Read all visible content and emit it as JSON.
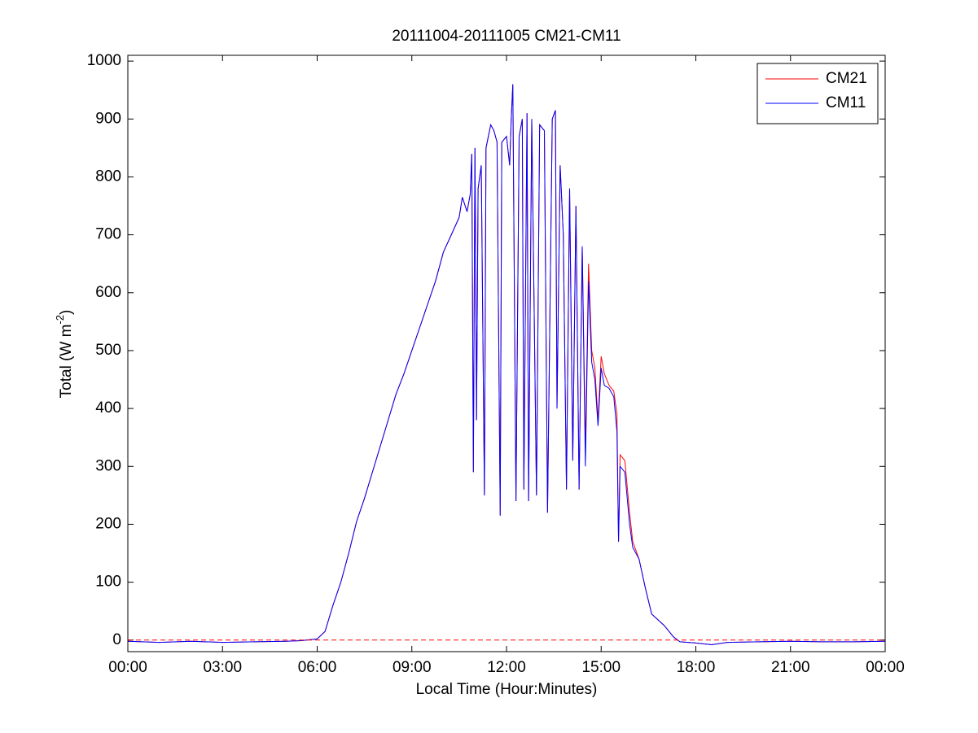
{
  "chart_data": {
    "type": "line",
    "title": "20111004-20111005 CM21-CM11",
    "x_label": "Local Time (Hour:Minutes)",
    "y_label": "Total (W m",
    "y_label_sup": "-2",
    "y_label_end": ")",
    "xlim": [
      0,
      24
    ],
    "xticks": [
      {
        "value": 0,
        "label": "00:00"
      },
      {
        "value": 3,
        "label": "03:00"
      },
      {
        "value": 6,
        "label": "06:00"
      },
      {
        "value": 9,
        "label": "09:00"
      },
      {
        "value": 12,
        "label": "12:00"
      },
      {
        "value": 15,
        "label": "15:00"
      },
      {
        "value": 18,
        "label": "18:00"
      },
      {
        "value": 21,
        "label": "21:00"
      },
      {
        "value": 24,
        "label": "00:00"
      }
    ],
    "ylim": [
      -20,
      1010
    ],
    "yticks": [
      0,
      100,
      200,
      300,
      400,
      500,
      600,
      700,
      800,
      900,
      1000
    ],
    "hline": {
      "value": 0,
      "color": "#ff0000"
    },
    "legend": "upper right",
    "x": [
      0,
      1,
      2,
      3,
      4,
      5,
      5.5,
      6,
      6.25,
      6.5,
      6.75,
      7,
      7.25,
      7.5,
      7.75,
      8,
      8.25,
      8.5,
      8.75,
      9,
      9.25,
      9.5,
      9.75,
      10,
      10.25,
      10.5,
      10.6,
      10.75,
      10.85,
      10.9,
      10.95,
      11,
      11.05,
      11.1,
      11.2,
      11.3,
      11.35,
      11.5,
      11.6,
      11.7,
      11.8,
      11.85,
      12,
      12.1,
      12.15,
      12.2,
      12.3,
      12.4,
      12.5,
      12.55,
      12.65,
      12.7,
      12.8,
      12.95,
      13.05,
      13.2,
      13.3,
      13.45,
      13.55,
      13.6,
      13.7,
      13.8,
      13.9,
      14,
      14.1,
      14.2,
      14.3,
      14.4,
      14.5,
      14.6,
      14.7,
      14.8,
      14.9,
      15,
      15.1,
      15.25,
      15.4,
      15.5,
      15.55,
      15.6,
      15.75,
      15.9,
      16,
      16.2,
      16.4,
      16.6,
      16.8,
      17,
      17.3,
      17.5,
      18,
      18.5,
      19,
      20,
      21,
      22,
      23,
      24
    ],
    "series": [
      {
        "name": "CM21",
        "color": "#ff0000",
        "values": [
          -2,
          -4,
          -2,
          -4,
          -3,
          -2,
          -1,
          2,
          15,
          60,
          100,
          150,
          205,
          245,
          290,
          335,
          380,
          425,
          460,
          500,
          540,
          580,
          620,
          670,
          700,
          730,
          765,
          740,
          770,
          840,
          290,
          850,
          380,
          780,
          820,
          250,
          850,
          890,
          880,
          860,
          215,
          860,
          870,
          820,
          900,
          960,
          240,
          870,
          900,
          260,
          910,
          240,
          900,
          250,
          890,
          880,
          220,
          900,
          915,
          400,
          820,
          700,
          260,
          780,
          310,
          750,
          260,
          680,
          330,
          650,
          500,
          470,
          380,
          490,
          460,
          440,
          430,
          390,
          170,
          320,
          310,
          220,
          170,
          140,
          90,
          45,
          35,
          25,
          5,
          -3,
          -5,
          -8,
          -4,
          -3,
          -2,
          -3,
          -3,
          -2
        ]
      },
      {
        "name": "CM11",
        "color": "#0000ff",
        "values": [
          -2,
          -4,
          -2,
          -4,
          -3,
          -2,
          -1,
          2,
          15,
          60,
          100,
          150,
          205,
          245,
          290,
          335,
          380,
          425,
          460,
          500,
          540,
          580,
          620,
          670,
          700,
          730,
          765,
          740,
          770,
          840,
          290,
          850,
          380,
          780,
          820,
          250,
          850,
          890,
          880,
          860,
          215,
          860,
          870,
          820,
          900,
          960,
          240,
          870,
          900,
          260,
          910,
          240,
          900,
          250,
          890,
          880,
          220,
          900,
          915,
          400,
          820,
          700,
          260,
          780,
          310,
          750,
          260,
          680,
          300,
          620,
          480,
          450,
          370,
          470,
          440,
          435,
          420,
          360,
          170,
          300,
          290,
          200,
          160,
          140,
          90,
          45,
          35,
          25,
          5,
          -3,
          -5,
          -8,
          -4,
          -3,
          -2,
          -3,
          -3,
          -2
        ]
      }
    ]
  }
}
